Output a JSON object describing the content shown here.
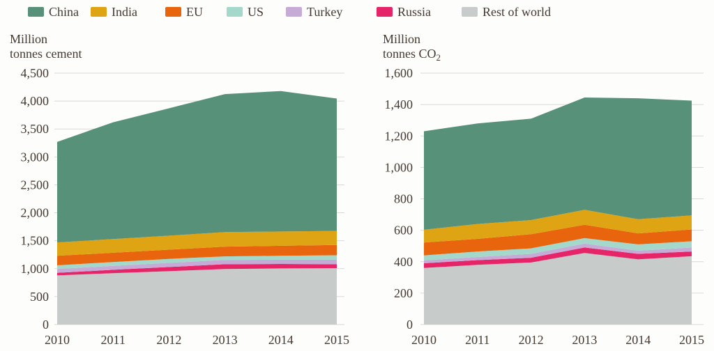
{
  "legend": {
    "items": [
      {
        "label": "China",
        "color": "#57917a"
      },
      {
        "label": "India",
        "color": "#dea414"
      },
      {
        "label": "EU",
        "color": "#e8650d"
      },
      {
        "label": "US",
        "color": "#a3d8ca"
      },
      {
        "label": "Turkey",
        "color": "#c5abd6"
      },
      {
        "label": "Russia",
        "color": "#e62468"
      },
      {
        "label": "Rest of world",
        "color": "#c7cbc9"
      }
    ]
  },
  "chart_data": [
    {
      "type": "area",
      "stacked": true,
      "title": "Million tonnes cement",
      "axis_title": {
        "line1": "Million",
        "line2": "tonnes cement",
        "sub": ""
      },
      "categories": [
        "2010",
        "2011",
        "2012",
        "2013",
        "2014",
        "2015"
      ],
      "ylim": [
        0,
        4500
      ],
      "ytick_step": 500,
      "ytick_labels": [
        "0",
        "500",
        "1,000",
        "1,500",
        "2,000",
        "2,500",
        "3,000",
        "3,500",
        "4,000",
        "4,500"
      ],
      "grid": true,
      "legend_position": "top",
      "series": [
        {
          "name": "Rest of world",
          "color": "#c7cbc9",
          "values": [
            880,
            920,
            955,
            995,
            1005,
            1010
          ]
        },
        {
          "name": "Russia",
          "color": "#e62468",
          "values": [
            45,
            60,
            75,
            85,
            80,
            70
          ]
        },
        {
          "name": "Turkey",
          "color": "#c5abd6",
          "values": [
            70,
            70,
            75,
            75,
            75,
            80
          ]
        },
        {
          "name": "US",
          "color": "#a3d8ca",
          "values": [
            65,
            70,
            70,
            65,
            72,
            80
          ]
        },
        {
          "name": "EU",
          "color": "#e8650d",
          "values": [
            170,
            165,
            165,
            175,
            178,
            185
          ]
        },
        {
          "name": "India",
          "color": "#dea414",
          "values": [
            240,
            245,
            250,
            260,
            255,
            250
          ]
        },
        {
          "name": "China",
          "color": "#57917a",
          "values": [
            1800,
            2090,
            2280,
            2470,
            2515,
            2370
          ]
        }
      ],
      "totals": [
        3270,
        3620,
        3870,
        4125,
        4180,
        4045
      ]
    },
    {
      "type": "area",
      "stacked": true,
      "title": "Million tonnes CO2",
      "axis_title": {
        "line1": "Million",
        "line2": "tonnes CO",
        "sub": "2"
      },
      "categories": [
        "2010",
        "2011",
        "2012",
        "2013",
        "2014",
        "2015"
      ],
      "ylim": [
        0,
        1600
      ],
      "ytick_step": 200,
      "ytick_labels": [
        "0",
        "200",
        "400",
        "600",
        "800",
        "1,000",
        "1,200",
        "1,400",
        "1,600"
      ],
      "grid": true,
      "legend_position": "top",
      "series": [
        {
          "name": "Rest of world",
          "color": "#c7cbc9",
          "values": [
            360,
            380,
            395,
            455,
            415,
            435
          ]
        },
        {
          "name": "Russia",
          "color": "#e62468",
          "values": [
            30,
            30,
            30,
            35,
            35,
            30
          ]
        },
        {
          "name": "Turkey",
          "color": "#c5abd6",
          "values": [
            18,
            20,
            25,
            25,
            20,
            25
          ]
        },
        {
          "name": "US",
          "color": "#a3d8ca",
          "values": [
            32,
            35,
            35,
            35,
            40,
            40
          ]
        },
        {
          "name": "EU",
          "color": "#e8650d",
          "values": [
            82,
            80,
            90,
            85,
            70,
            75
          ]
        },
        {
          "name": "India",
          "color": "#dea414",
          "values": [
            81,
            95,
            90,
            95,
            90,
            90
          ]
        },
        {
          "name": "China",
          "color": "#57917a",
          "values": [
            627,
            640,
            645,
            715,
            770,
            730
          ]
        }
      ],
      "totals": [
        1230,
        1280,
        1310,
        1445,
        1440,
        1425
      ]
    }
  ]
}
